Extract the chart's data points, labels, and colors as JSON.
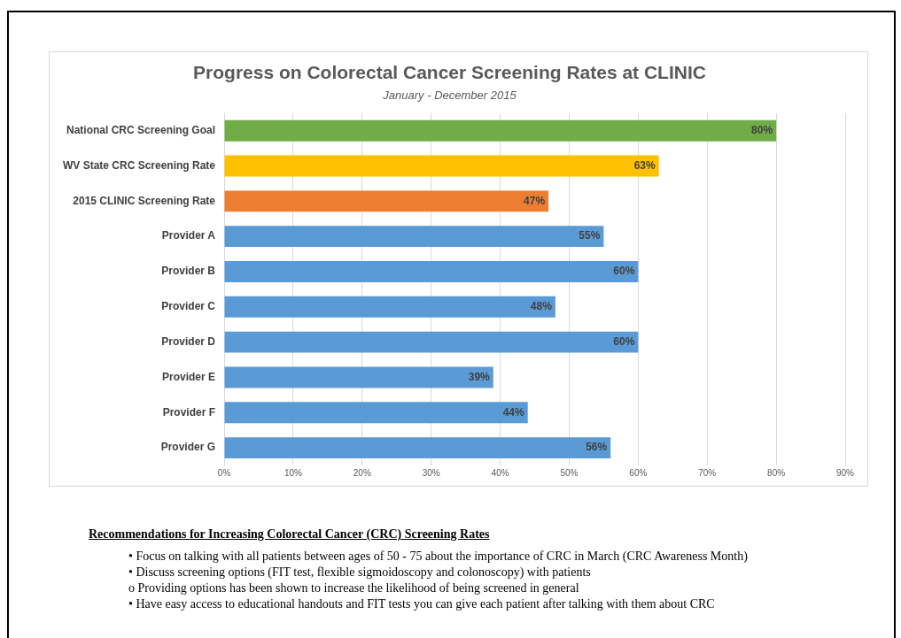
{
  "chart_data": {
    "type": "bar",
    "orientation": "horizontal",
    "title": "Progress on Colorectal Cancer Screening Rates at CLINIC",
    "subtitle": "January - December 2015",
    "categories": [
      "National CRC Screening Goal",
      "WV State CRC Screening Rate",
      "2015 CLINIC Screening Rate",
      "Provider A",
      "Provider B",
      "Provider C",
      "Provider D",
      "Provider E",
      "Provider F",
      "Provider G"
    ],
    "values": [
      80,
      63,
      47,
      55,
      60,
      48,
      60,
      39,
      44,
      56
    ],
    "colors": [
      "#70ad47",
      "#ffc000",
      "#ed7d31",
      "#5b9bd5",
      "#5b9bd5",
      "#5b9bd5",
      "#5b9bd5",
      "#5b9bd5",
      "#5b9bd5",
      "#5b9bd5"
    ],
    "value_labels": [
      "80%",
      "63%",
      "47%",
      "55%",
      "60%",
      "48%",
      "60%",
      "39%",
      "44%",
      "56%"
    ],
    "xlim": [
      0,
      90
    ],
    "xticks": [
      {
        "value": 0,
        "label": "0%"
      },
      {
        "value": 10,
        "label": "10%"
      },
      {
        "value": 20,
        "label": "20%"
      },
      {
        "value": 30,
        "label": "30%"
      },
      {
        "value": 40,
        "label": "40%"
      },
      {
        "value": 50,
        "label": "50%"
      },
      {
        "value": 60,
        "label": "60%"
      },
      {
        "value": 70,
        "label": "70%"
      },
      {
        "value": 80,
        "label": "80%"
      },
      {
        "value": 90,
        "label": "90%"
      }
    ],
    "grid": "x",
    "legend": false,
    "annotations": [
      "Recommendations for Increasing Colorectal Cancer (CRC) Screening Rates",
      "• Focus on talking with all patients between ages of 50 - 75 about the importance of CRC in March (CRC Awareness Month)",
      "• Discuss screening options (FIT test, flexible sigmoidoscopy and colonoscopy) with patients",
      "o Providing options has been shown to increase the likelihood of being screened in general",
      "• Have easy access to educational handouts and FIT tests you can give each patient after talking with them about CRC"
    ]
  }
}
